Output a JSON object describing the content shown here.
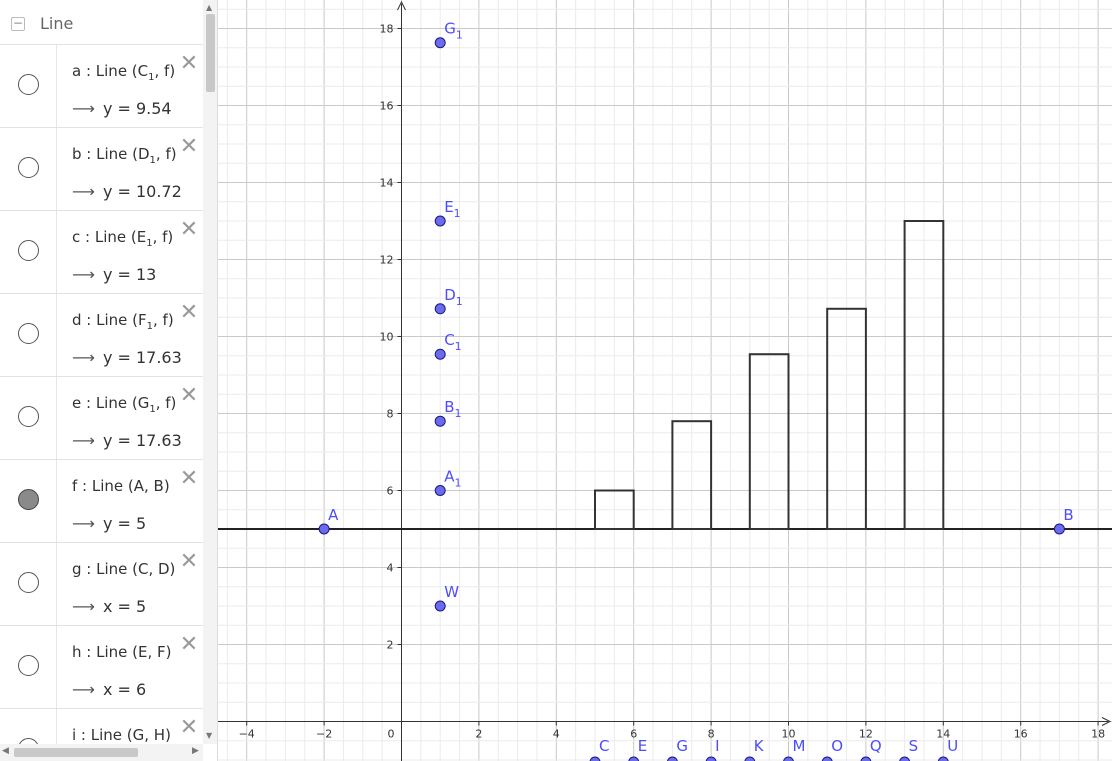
{
  "algebra": {
    "title": "Line",
    "collapse_glyph": "−",
    "items": [
      {
        "name": "a",
        "def": "a : Line (C",
        "sub": "1",
        "rest": ", f)",
        "value": "y = 9.54",
        "active": false
      },
      {
        "name": "b",
        "def": "b : Line (D",
        "sub": "1",
        "rest": ", f)",
        "value": "y = 10.72",
        "active": false
      },
      {
        "name": "c",
        "def": "c : Line (E",
        "sub": "1",
        "rest": ", f)",
        "value": "y = 13",
        "active": false
      },
      {
        "name": "d",
        "def": "d : Line (F",
        "sub": "1",
        "rest": ", f)",
        "value": "y = 17.63",
        "active": false
      },
      {
        "name": "e",
        "def": "e : Line (G",
        "sub": "1",
        "rest": ", f)",
        "value": "y = 17.63",
        "active": false
      },
      {
        "name": "f",
        "def": "f : Line (A, B)",
        "sub": "",
        "rest": "",
        "value": "y = 5",
        "active": true
      },
      {
        "name": "g",
        "def": "g : Line (C, D)",
        "sub": "",
        "rest": "",
        "value": "x = 5",
        "active": false
      },
      {
        "name": "h",
        "def": "h : Line (E, F)",
        "sub": "",
        "rest": "",
        "value": "x = 6",
        "active": false
      },
      {
        "name": "i",
        "def": "i : Line (G, H)",
        "sub": "",
        "rest": "",
        "value": "",
        "active": false
      }
    ],
    "arrow_glyph": "⟶",
    "delete_glyph": "✕"
  },
  "chart_data": {
    "type": "bar",
    "x_range": [
      -4.5,
      18.5
    ],
    "y_range": [
      -1,
      18.5
    ],
    "x_ticks": [
      -4,
      -2,
      0,
      2,
      4,
      6,
      8,
      10,
      12,
      14,
      16,
      18
    ],
    "y_ticks": [
      2,
      4,
      6,
      8,
      10,
      12,
      14,
      16,
      18
    ],
    "grid": true,
    "baseline_y": 5,
    "bars": [
      {
        "x0": 5,
        "x1": 6,
        "top": 6
      },
      {
        "x0": 7,
        "x1": 8,
        "top": 7.8
      },
      {
        "x0": 9,
        "x1": 10,
        "top": 9.54
      },
      {
        "x0": 11,
        "x1": 12,
        "top": 10.72
      },
      {
        "x0": 13,
        "x1": 14,
        "top": 13
      }
    ],
    "points": [
      {
        "label": "A",
        "sub": "",
        "x": -2,
        "y": 5
      },
      {
        "label": "B",
        "sub": "",
        "x": 17,
        "y": 5
      },
      {
        "label": "A",
        "sub": "1",
        "x": 1,
        "y": 6
      },
      {
        "label": "B",
        "sub": "1",
        "x": 1,
        "y": 7.8
      },
      {
        "label": "C",
        "sub": "1",
        "x": 1,
        "y": 9.54
      },
      {
        "label": "D",
        "sub": "1",
        "x": 1,
        "y": 10.72
      },
      {
        "label": "E",
        "sub": "1",
        "x": 1,
        "y": 13
      },
      {
        "label": "G",
        "sub": "1",
        "x": 1,
        "y": 17.63
      },
      {
        "label": "W",
        "sub": "",
        "x": 1,
        "y": 3
      }
    ],
    "bottom_points": [
      {
        "label": "C",
        "x": 5
      },
      {
        "label": "E",
        "x": 6
      },
      {
        "label": "G",
        "x": 7
      },
      {
        "label": "I",
        "x": 8
      },
      {
        "label": "K",
        "x": 9
      },
      {
        "label": "M",
        "x": 10
      },
      {
        "label": "O",
        "x": 11
      },
      {
        "label": "Q",
        "x": 12
      },
      {
        "label": "S",
        "x": 13
      },
      {
        "label": "U",
        "x": 14
      }
    ],
    "colors": {
      "point": "#6b6bf0",
      "point_stroke": "#1a1a7a",
      "label": "#4d4dff",
      "bar": "#333333",
      "axis": "#333333"
    }
  }
}
